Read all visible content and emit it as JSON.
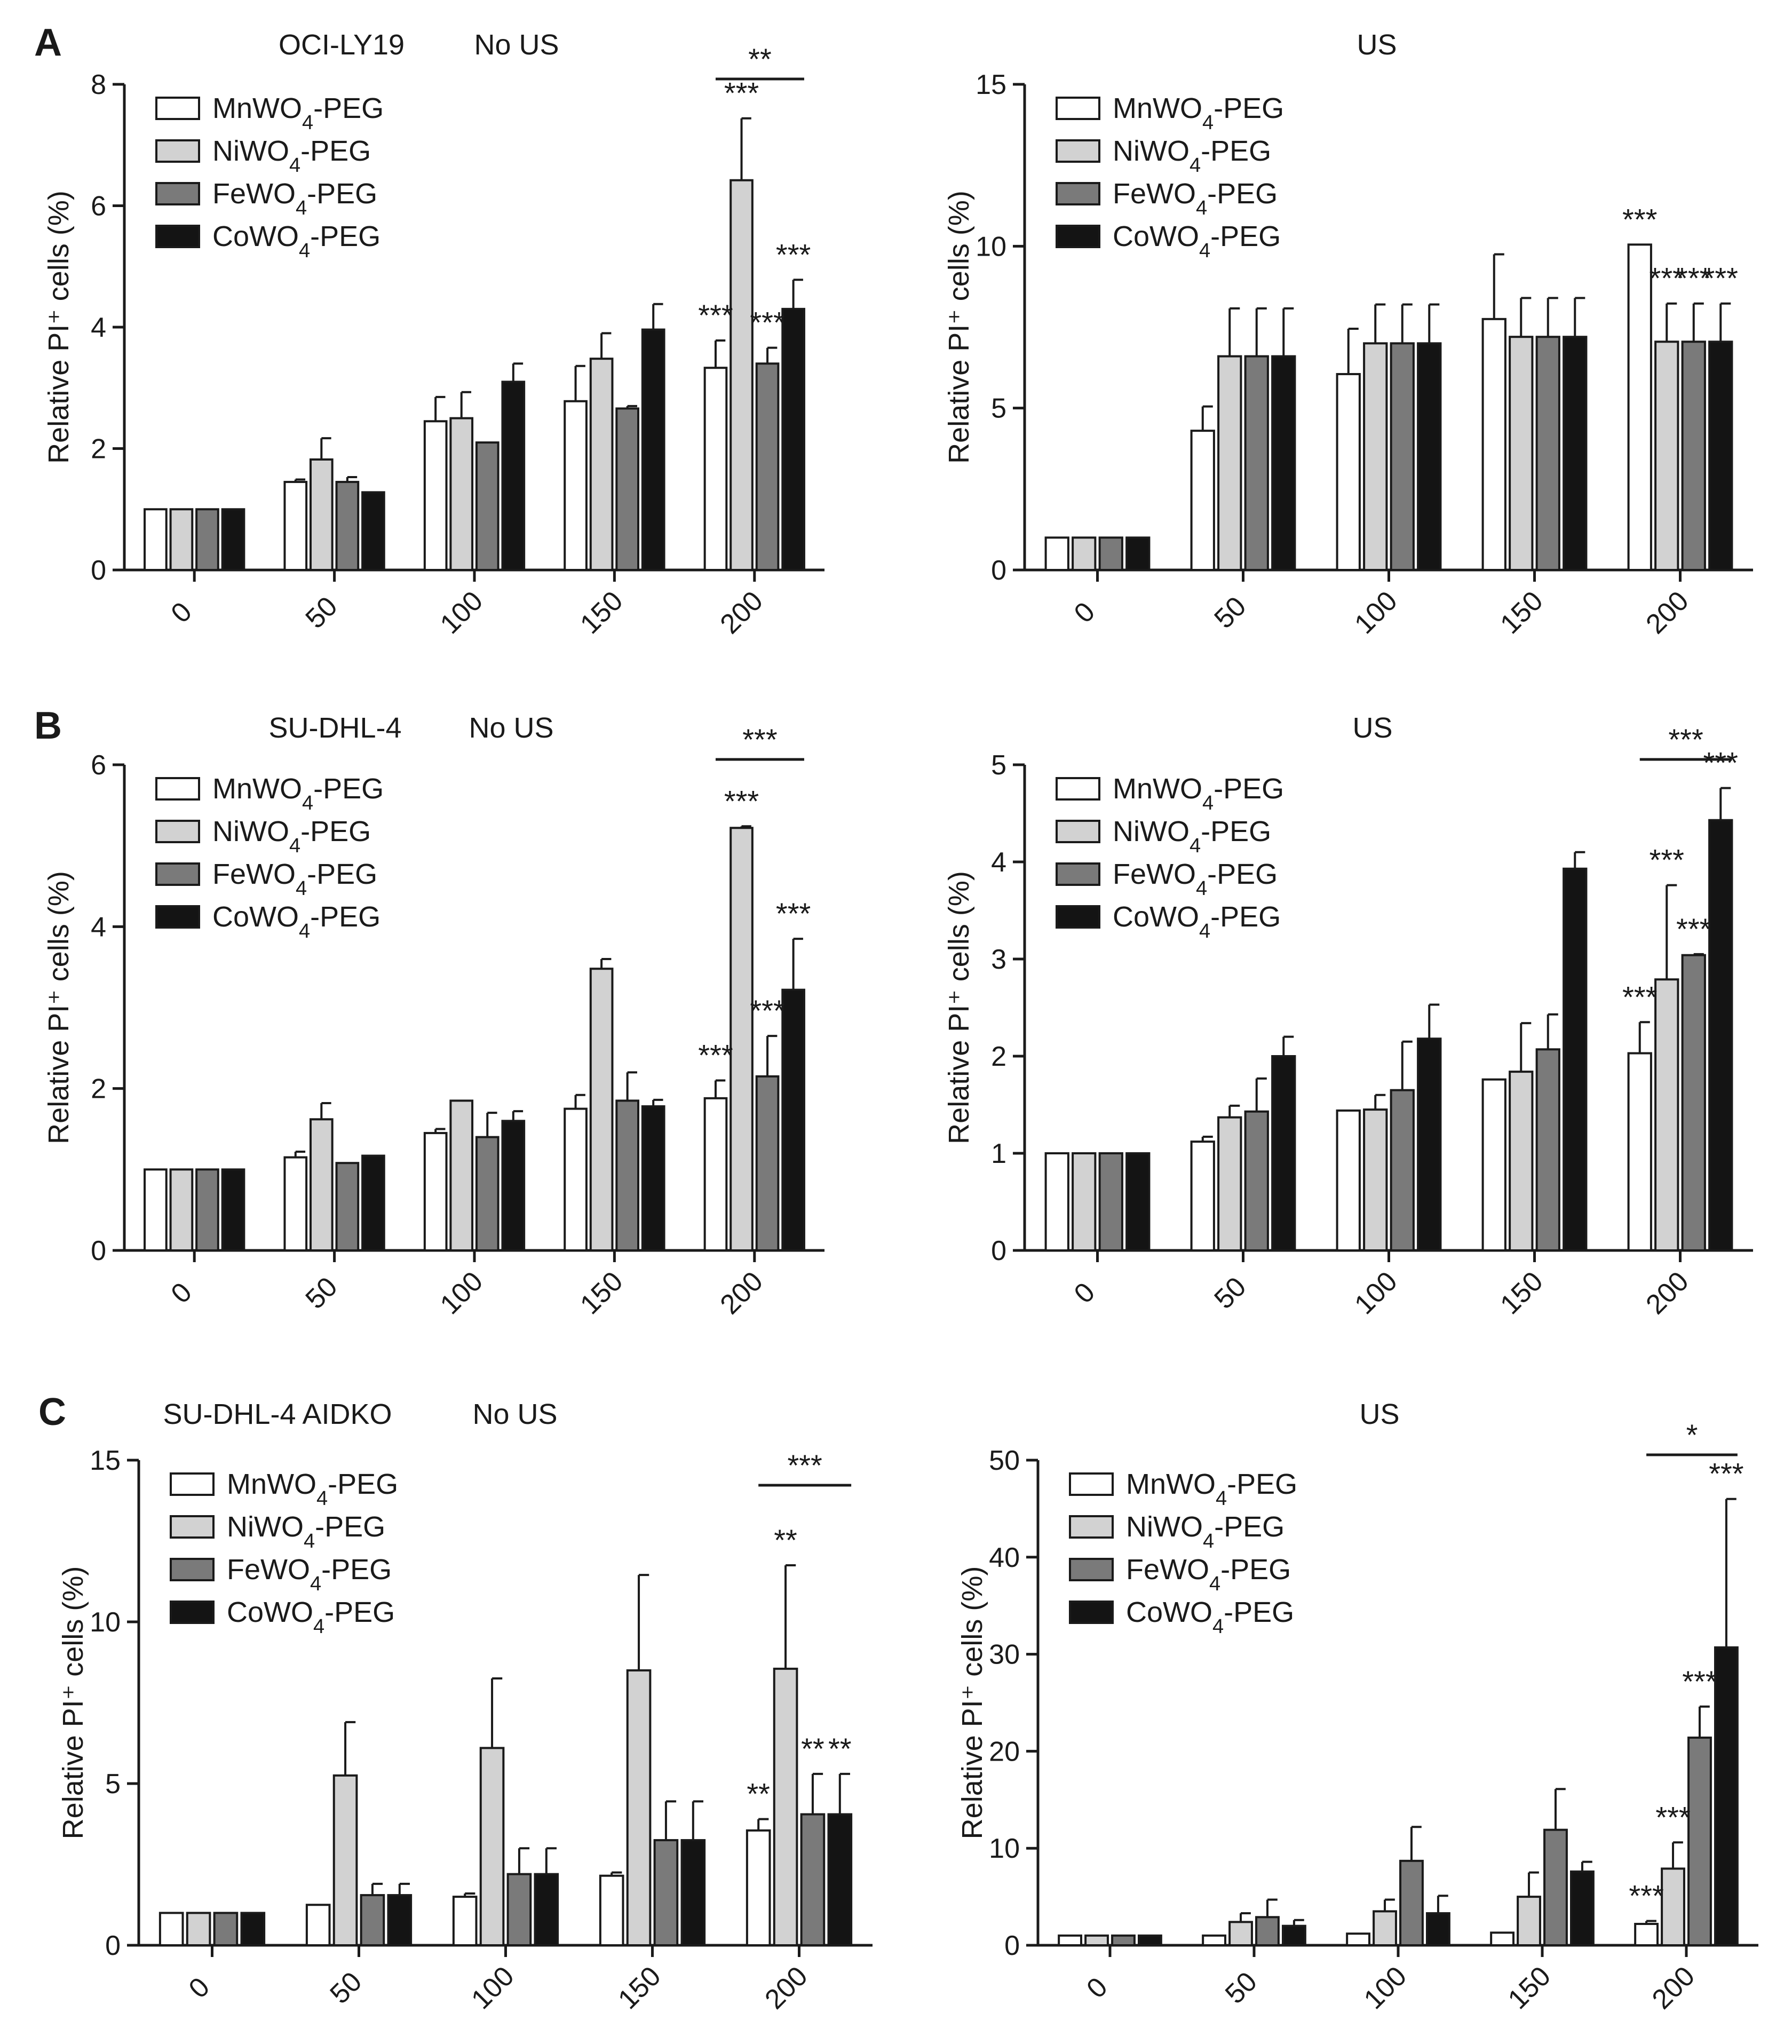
{
  "colors": {
    "MnWO4-PEG": "#ffffff",
    "NiWO4-PEG": "#d2d2d2",
    "FeWO4-PEG": "#7a7a7a",
    "CoWO4-PEG": "#141414"
  },
  "panel_letters": [
    "A",
    "B",
    "C"
  ],
  "chart_data": [
    {
      "type": "bar",
      "panel": "A",
      "cell_line": "OCI-LY19",
      "condition": "No US",
      "ylabel": "Relative PI⁺ cells (%)",
      "ylim": [
        0,
        8
      ],
      "yticks": [
        0,
        2,
        4,
        6,
        8
      ],
      "categories": [
        "0",
        "50",
        "100",
        "150",
        "200"
      ],
      "legend": "top-left",
      "series": [
        {
          "name": "MnWO4-PEG",
          "values": [
            1.0,
            1.45,
            2.45,
            2.78,
            3.33
          ],
          "errors": [
            0,
            0.04,
            0.4,
            0.58,
            0.45
          ]
        },
        {
          "name": "NiWO4-PEG",
          "values": [
            1.0,
            1.82,
            2.5,
            3.48,
            6.42
          ],
          "errors": [
            0,
            0.35,
            0.43,
            0.42,
            1.02
          ]
        },
        {
          "name": "FeWO4-PEG",
          "values": [
            1.0,
            1.45,
            2.1,
            2.66,
            3.4
          ],
          "errors": [
            0,
            0.08,
            0,
            0.04,
            0.26
          ]
        },
        {
          "name": "CoWO4-PEG",
          "values": [
            1.0,
            1.28,
            3.1,
            3.96,
            4.3
          ],
          "errors": [
            0,
            0,
            0.3,
            0.42,
            0.48
          ]
        }
      ],
      "stars": [
        "***",
        "***",
        "***",
        "***"
      ],
      "bracket": "**"
    },
    {
      "type": "bar",
      "panel": "A",
      "cell_line": "",
      "condition": "US",
      "ylabel": "Relative PI⁺ cells (%)",
      "ylim": [
        0,
        15
      ],
      "yticks": [
        0,
        5,
        10,
        15
      ],
      "categories": [
        "0",
        "50",
        "100",
        "150",
        "200"
      ],
      "legend": "top-left",
      "series": [
        {
          "name": "MnWO4-PEG",
          "values": [
            1.0,
            4.3,
            6.05,
            7.75,
            10.05
          ],
          "errors": [
            0,
            0.75,
            1.4,
            2.0,
            0
          ]
        },
        {
          "name": "NiWO4-PEG",
          "values": [
            1.0,
            6.6,
            7.0,
            7.2,
            7.05
          ],
          "errors": [
            0,
            1.48,
            1.2,
            1.2,
            1.18
          ]
        },
        {
          "name": "FeWO4-PEG",
          "values": [
            1.0,
            6.6,
            7.0,
            7.2,
            7.05
          ],
          "errors": [
            0,
            1.48,
            1.2,
            1.2,
            1.18
          ]
        },
        {
          "name": "CoWO4-PEG",
          "values": [
            1.0,
            6.6,
            7.0,
            7.2,
            7.05
          ],
          "errors": [
            0,
            1.48,
            1.2,
            1.2,
            1.18
          ]
        }
      ],
      "stars": [
        "***",
        "***",
        "***",
        "***"
      ],
      "bracket": ""
    },
    {
      "type": "bar",
      "panel": "B",
      "cell_line": "SU-DHL-4",
      "condition": "No US",
      "ylabel": "Relative PI⁺ cells (%)",
      "ylim": [
        0,
        6
      ],
      "yticks": [
        0,
        2,
        4,
        6
      ],
      "categories": [
        "0",
        "50",
        "100",
        "150",
        "200"
      ],
      "legend": "top-left",
      "series": [
        {
          "name": "MnWO4-PEG",
          "values": [
            1.0,
            1.15,
            1.45,
            1.75,
            1.88
          ],
          "errors": [
            0,
            0.07,
            0.05,
            0.17,
            0.22
          ]
        },
        {
          "name": "NiWO4-PEG",
          "values": [
            1.0,
            1.62,
            1.85,
            3.48,
            5.22
          ],
          "errors": [
            0,
            0.2,
            0,
            0.12,
            0.02
          ]
        },
        {
          "name": "FeWO4-PEG",
          "values": [
            1.0,
            1.08,
            1.4,
            1.85,
            2.15
          ],
          "errors": [
            0,
            0,
            0.3,
            0.35,
            0.5
          ]
        },
        {
          "name": "CoWO4-PEG",
          "values": [
            1.0,
            1.17,
            1.6,
            1.78,
            3.22
          ],
          "errors": [
            0,
            0,
            0.12,
            0.08,
            0.63
          ]
        }
      ],
      "stars": [
        "***",
        "***",
        "***",
        "***"
      ],
      "bracket": "***"
    },
    {
      "type": "bar",
      "panel": "B",
      "cell_line": "",
      "condition": "US",
      "ylabel": "Relative PI⁺ cells (%)",
      "ylim": [
        0,
        5
      ],
      "yticks": [
        0,
        1,
        2,
        3,
        4,
        5
      ],
      "categories": [
        "0",
        "50",
        "100",
        "150",
        "200"
      ],
      "legend": "top-left",
      "series": [
        {
          "name": "MnWO4-PEG",
          "values": [
            1.0,
            1.12,
            1.44,
            1.76,
            2.03
          ],
          "errors": [
            0,
            0.05,
            0,
            0,
            0.32
          ]
        },
        {
          "name": "NiWO4-PEG",
          "values": [
            1.0,
            1.37,
            1.45,
            1.84,
            2.79
          ],
          "errors": [
            0,
            0.12,
            0.15,
            0.5,
            0.97
          ]
        },
        {
          "name": "FeWO4-PEG",
          "values": [
            1.0,
            1.43,
            1.65,
            2.07,
            3.04
          ],
          "errors": [
            0,
            0.34,
            0.5,
            0.36,
            0.01
          ]
        },
        {
          "name": "CoWO4-PEG",
          "values": [
            1.0,
            2.0,
            2.18,
            3.93,
            4.43
          ],
          "errors": [
            0,
            0.2,
            0.35,
            0.17,
            0.33
          ]
        }
      ],
      "stars": [
        "***",
        "***",
        "***",
        "***"
      ],
      "bracket": "***"
    },
    {
      "type": "bar",
      "panel": "C",
      "cell_line": "SU-DHL-4 AIDKO",
      "condition": "No US",
      "ylabel": "Relative PI⁺ cells (%)",
      "ylim": [
        0,
        15
      ],
      "yticks": [
        0,
        5,
        10,
        15
      ],
      "categories": [
        "0",
        "50",
        "100",
        "150",
        "200"
      ],
      "legend": "top-left",
      "series": [
        {
          "name": "MnWO4-PEG",
          "values": [
            1.0,
            1.25,
            1.5,
            2.15,
            3.55
          ],
          "errors": [
            0,
            0,
            0.1,
            0.1,
            0.35
          ]
        },
        {
          "name": "NiWO4-PEG",
          "values": [
            1.0,
            5.25,
            6.1,
            8.5,
            8.55
          ],
          "errors": [
            0,
            1.65,
            2.15,
            2.95,
            3.2
          ]
        },
        {
          "name": "FeWO4-PEG",
          "values": [
            1.0,
            1.55,
            2.2,
            3.25,
            4.05
          ],
          "errors": [
            0,
            0.35,
            0.8,
            1.2,
            1.25
          ]
        },
        {
          "name": "CoWO4-PEG",
          "values": [
            1.0,
            1.55,
            2.2,
            3.25,
            4.05
          ],
          "errors": [
            0,
            0.35,
            0.8,
            1.2,
            1.25
          ]
        }
      ],
      "stars": [
        "**",
        "**",
        "**",
        "**"
      ],
      "bracket": "***"
    },
    {
      "type": "bar",
      "panel": "C",
      "cell_line": "",
      "condition": "US",
      "ylabel": "Relative PI⁺ cells (%)",
      "ylim": [
        0,
        50
      ],
      "yticks": [
        0,
        10,
        20,
        30,
        40,
        50
      ],
      "categories": [
        "0",
        "50",
        "100",
        "150",
        "200"
      ],
      "legend": "top-left",
      "series": [
        {
          "name": "MnWO4-PEG",
          "values": [
            1.0,
            1.0,
            1.2,
            1.3,
            2.2
          ],
          "errors": [
            0,
            0,
            0,
            0,
            0.3
          ]
        },
        {
          "name": "NiWO4-PEG",
          "values": [
            1.0,
            2.4,
            3.5,
            5.0,
            7.9
          ],
          "errors": [
            0,
            0.9,
            1.2,
            2.5,
            2.7
          ]
        },
        {
          "name": "FeWO4-PEG",
          "values": [
            1.0,
            2.9,
            8.7,
            11.9,
            21.4
          ],
          "errors": [
            0,
            1.8,
            3.5,
            4.2,
            3.2
          ]
        },
        {
          "name": "CoWO4-PEG",
          "values": [
            1.0,
            2.0,
            3.3,
            7.6,
            30.7
          ],
          "errors": [
            0,
            0.6,
            1.8,
            1.0,
            15.3
          ]
        }
      ],
      "stars": [
        "***",
        "***",
        "***",
        "***"
      ],
      "bracket": "*"
    }
  ]
}
